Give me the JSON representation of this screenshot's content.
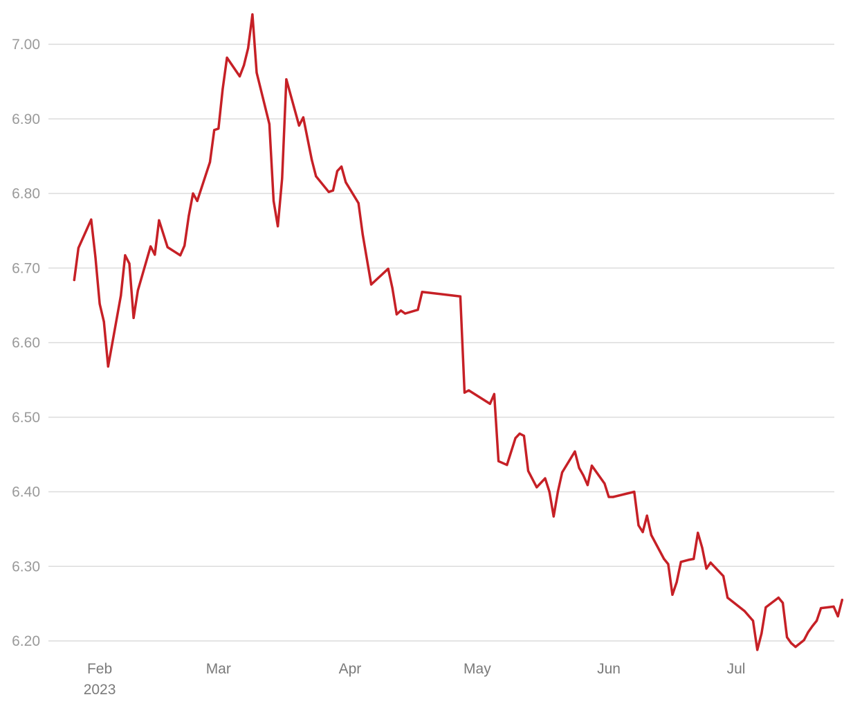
{
  "chart_data": {
    "type": "line",
    "title": "",
    "xlabel": "",
    "ylabel": "",
    "ylim": [
      6.2,
      7.04
    ],
    "y_ticks": [
      "7.00",
      "6.90",
      "6.80",
      "6.70",
      "6.60",
      "6.50",
      "6.40",
      "6.30",
      "6.20"
    ],
    "y_tick_values": [
      7.0,
      6.9,
      6.8,
      6.7,
      6.6,
      6.5,
      6.4,
      6.3,
      6.2
    ],
    "x_range": [
      "2023-01-24",
      "2023-07-25"
    ],
    "x_ticks": [
      {
        "date": "2023-02-01",
        "label": "Feb",
        "sublabel": "2023"
      },
      {
        "date": "2023-03-01",
        "label": "Mar",
        "sublabel": ""
      },
      {
        "date": "2023-04-01",
        "label": "Apr",
        "sublabel": ""
      },
      {
        "date": "2023-05-01",
        "label": "May",
        "sublabel": ""
      },
      {
        "date": "2023-06-01",
        "label": "Jun",
        "sublabel": ""
      },
      {
        "date": "2023-07-01",
        "label": "Jul",
        "sublabel": ""
      }
    ],
    "grid": true,
    "legend": "none",
    "series": [
      {
        "color": "#c62026",
        "points": [
          [
            "2023-01-26",
            6.684
          ],
          [
            "2023-01-27",
            6.727
          ],
          [
            "2023-01-30",
            6.765
          ],
          [
            "2023-01-31",
            6.715
          ],
          [
            "2023-02-01",
            6.652
          ],
          [
            "2023-02-02",
            6.628
          ],
          [
            "2023-02-03",
            6.568
          ],
          [
            "2023-02-06",
            6.663
          ],
          [
            "2023-02-07",
            6.717
          ],
          [
            "2023-02-08",
            6.706
          ],
          [
            "2023-02-09",
            6.633
          ],
          [
            "2023-02-10",
            6.67
          ],
          [
            "2023-02-13",
            6.729
          ],
          [
            "2023-02-14",
            6.718
          ],
          [
            "2023-02-15",
            6.764
          ],
          [
            "2023-02-17",
            6.728
          ],
          [
            "2023-02-20",
            6.717
          ],
          [
            "2023-02-21",
            6.73
          ],
          [
            "2023-02-22",
            6.77
          ],
          [
            "2023-02-23",
            6.8
          ],
          [
            "2023-02-24",
            6.79
          ],
          [
            "2023-02-27",
            6.842
          ],
          [
            "2023-02-28",
            6.885
          ],
          [
            "2023-03-01",
            6.887
          ],
          [
            "2023-03-02",
            6.94
          ],
          [
            "2023-03-03",
            6.982
          ],
          [
            "2023-03-06",
            6.957
          ],
          [
            "2023-03-07",
            6.972
          ],
          [
            "2023-03-08",
            6.995
          ],
          [
            "2023-03-09",
            7.04
          ],
          [
            "2023-03-10",
            6.962
          ],
          [
            "2023-03-13",
            6.893
          ],
          [
            "2023-03-14",
            6.79
          ],
          [
            "2023-03-15",
            6.756
          ],
          [
            "2023-03-16",
            6.82
          ],
          [
            "2023-03-17",
            6.953
          ],
          [
            "2023-03-20",
            6.891
          ],
          [
            "2023-03-21",
            6.902
          ],
          [
            "2023-03-23",
            6.845
          ],
          [
            "2023-03-24",
            6.823
          ],
          [
            "2023-03-27",
            6.802
          ],
          [
            "2023-03-28",
            6.804
          ],
          [
            "2023-03-29",
            6.83
          ],
          [
            "2023-03-30",
            6.836
          ],
          [
            "2023-03-31",
            6.815
          ],
          [
            "2023-04-03",
            6.787
          ],
          [
            "2023-04-04",
            6.745
          ],
          [
            "2023-04-06",
            6.678
          ],
          [
            "2023-04-10",
            6.699
          ],
          [
            "2023-04-11",
            6.673
          ],
          [
            "2023-04-12",
            6.638
          ],
          [
            "2023-04-13",
            6.643
          ],
          [
            "2023-04-14",
            6.639
          ],
          [
            "2023-04-17",
            6.644
          ],
          [
            "2023-04-18",
            6.668
          ],
          [
            "2023-04-27",
            6.662
          ],
          [
            "2023-04-28",
            6.533
          ],
          [
            "2023-04-29",
            6.536
          ],
          [
            "2023-05-04",
            6.518
          ],
          [
            "2023-05-05",
            6.531
          ],
          [
            "2023-05-06",
            6.441
          ],
          [
            "2023-05-08",
            6.436
          ],
          [
            "2023-05-10",
            6.472
          ],
          [
            "2023-05-11",
            6.478
          ],
          [
            "2023-05-12",
            6.475
          ],
          [
            "2023-05-13",
            6.428
          ],
          [
            "2023-05-15",
            6.406
          ],
          [
            "2023-05-17",
            6.418
          ],
          [
            "2023-05-18",
            6.4
          ],
          [
            "2023-05-19",
            6.367
          ],
          [
            "2023-05-20",
            6.4
          ],
          [
            "2023-05-21",
            6.426
          ],
          [
            "2023-05-24",
            6.454
          ],
          [
            "2023-05-25",
            6.432
          ],
          [
            "2023-05-26",
            6.422
          ],
          [
            "2023-05-27",
            6.409
          ],
          [
            "2023-05-28",
            6.435
          ],
          [
            "2023-05-31",
            6.411
          ],
          [
            "2023-06-01",
            6.393
          ],
          [
            "2023-06-02",
            6.393
          ],
          [
            "2023-06-07",
            6.4
          ],
          [
            "2023-06-08",
            6.355
          ],
          [
            "2023-06-09",
            6.346
          ],
          [
            "2023-06-10",
            6.368
          ],
          [
            "2023-06-11",
            6.342
          ],
          [
            "2023-06-14",
            6.31
          ],
          [
            "2023-06-15",
            6.303
          ],
          [
            "2023-06-16",
            6.262
          ],
          [
            "2023-06-17",
            6.279
          ],
          [
            "2023-06-18",
            6.306
          ],
          [
            "2023-06-20",
            6.309
          ],
          [
            "2023-06-21",
            6.31
          ],
          [
            "2023-06-22",
            6.345
          ],
          [
            "2023-06-23",
            6.325
          ],
          [
            "2023-06-24",
            6.297
          ],
          [
            "2023-06-25",
            6.305
          ],
          [
            "2023-06-28",
            6.287
          ],
          [
            "2023-06-29",
            6.258
          ],
          [
            "2023-07-03",
            6.24
          ],
          [
            "2023-07-05",
            6.227
          ],
          [
            "2023-07-06",
            6.188
          ],
          [
            "2023-07-07",
            6.21
          ],
          [
            "2023-07-08",
            6.245
          ],
          [
            "2023-07-11",
            6.258
          ],
          [
            "2023-07-12",
            6.251
          ],
          [
            "2023-07-13",
            6.205
          ],
          [
            "2023-07-14",
            6.197
          ],
          [
            "2023-07-15",
            6.192
          ],
          [
            "2023-07-17",
            6.201
          ],
          [
            "2023-07-18",
            6.212
          ],
          [
            "2023-07-19",
            6.22
          ],
          [
            "2023-07-20",
            6.227
          ],
          [
            "2023-07-21",
            6.244
          ],
          [
            "2023-07-24",
            6.246
          ],
          [
            "2023-07-25",
            6.233
          ],
          [
            "2023-07-26",
            6.255
          ]
        ]
      }
    ]
  }
}
